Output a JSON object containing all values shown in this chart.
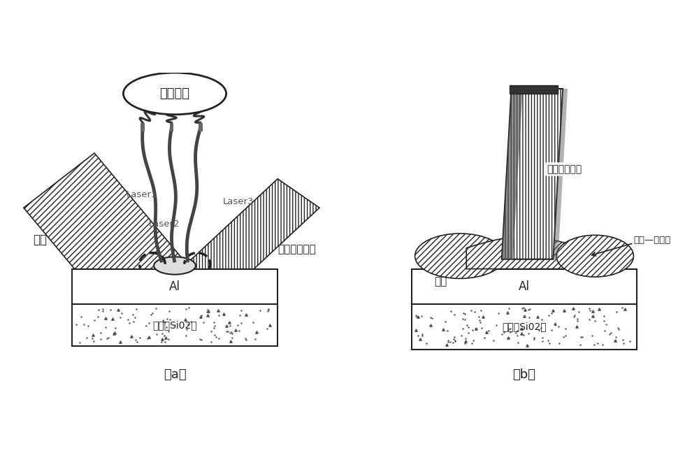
{
  "bg_color": "#ffffff",
  "title_a": "（a）",
  "title_b": "（b）",
  "text_fengguang": "分光系统",
  "text_laser1": "Laser1",
  "text_laser2": "Laser2",
  "text_laser3": "Laser3",
  "text_hanjiao_a": "钎料",
  "text_tongsi_a": "铜丝（焊丝）",
  "text_al_a": "Al",
  "text_chip_a": "芯片（Si02）",
  "text_tongsi_b": "铜丝（焊丝）",
  "text_hanjiao_b": "钎材",
  "text_interface_b": "钎材—铜界面",
  "text_al_b": "Al",
  "text_chip_b": "芯片（Si02）",
  "line_color": "#222222",
  "face_white": "#ffffff",
  "face_light": "#e8e8e8"
}
